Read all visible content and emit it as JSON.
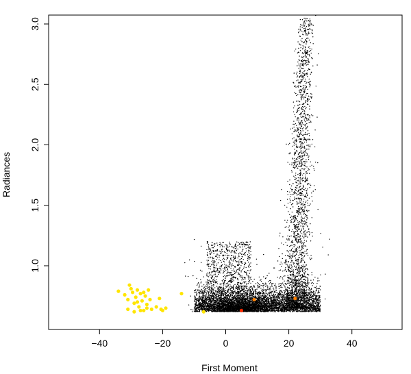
{
  "chart_data": {
    "type": "scatter",
    "title": "",
    "xlabel": "First Moment",
    "ylabel": "Radiances",
    "xlim": [
      -52,
      52
    ],
    "ylim": [
      0.6,
      3.1
    ],
    "x_ticks": [
      -40,
      -20,
      0,
      20,
      40
    ],
    "y_ticks": [
      1.0,
      1.5,
      2.0,
      2.5,
      3.0
    ],
    "x_tick_labels": [
      "−40",
      "−20",
      "0",
      "20",
      "40"
    ],
    "y_tick_labels": [
      "1.0",
      "1.5",
      "2.0",
      "2.5",
      "3.0"
    ],
    "grid": false,
    "background_points": {
      "color": "#000000",
      "approx_count": 9000,
      "description_of_density": "dense cloud from x≈-12 to 32 near y 0.62-1.2; plume rising to y≈3.07 near x 22-29"
    },
    "series": [
      {
        "color": "#FFE500",
        "points": [
          [
            -34,
            0.79
          ],
          [
            -32,
            0.76
          ],
          [
            -31,
            0.72
          ],
          [
            -30.5,
            0.84
          ],
          [
            -30,
            0.81
          ],
          [
            -29.5,
            0.78
          ],
          [
            -29,
            0.69
          ],
          [
            -28.5,
            0.74
          ],
          [
            -28,
            0.8
          ],
          [
            -27.5,
            0.66
          ],
          [
            -27,
            0.77
          ],
          [
            -26.5,
            0.71
          ],
          [
            -26,
            0.63
          ],
          [
            -25.5,
            0.75
          ],
          [
            -25,
            0.68
          ],
          [
            -24.5,
            0.8
          ],
          [
            -24,
            0.72
          ],
          [
            -23.5,
            0.64
          ],
          [
            -31,
            0.64
          ],
          [
            -29,
            0.62
          ],
          [
            -27,
            0.63
          ],
          [
            -25,
            0.65
          ],
          [
            -28,
            0.7
          ],
          [
            -26,
            0.78
          ],
          [
            -22,
            0.66
          ],
          [
            -21,
            0.73
          ],
          [
            -20.5,
            0.64
          ],
          [
            -20,
            0.63
          ],
          [
            -19,
            0.65
          ],
          [
            -14,
            0.77
          ],
          [
            -7,
            0.62
          ]
        ]
      },
      {
        "color": "#FF7F00",
        "points": [
          [
            9,
            0.72
          ],
          [
            22,
            0.73
          ]
        ]
      },
      {
        "color": "#FF2A00",
        "points": [
          [
            5,
            0.63
          ]
        ]
      }
    ]
  }
}
